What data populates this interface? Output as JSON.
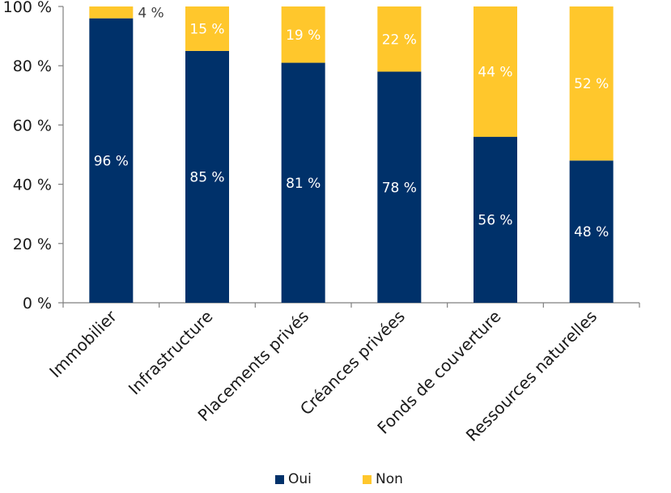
{
  "chart_data": {
    "type": "bar",
    "stacked": true,
    "categories": [
      "Immobilier",
      "Infrastructure",
      "Placements privés",
      "Créances privées",
      "Fonds de couverture",
      "Ressources naturelles"
    ],
    "series": [
      {
        "name": "Oui",
        "values": [
          96,
          85,
          81,
          78,
          56,
          48
        ],
        "labels": [
          "96 %",
          "85 %",
          "81 %",
          "78 %",
          "56 %",
          "48 %"
        ],
        "color": "#00316A"
      },
      {
        "name": "Non",
        "values": [
          4,
          15,
          19,
          22,
          44,
          52
        ],
        "labels": [
          "4 %",
          "15 %",
          "19 %",
          "22 %",
          "44 %",
          "52 %"
        ],
        "color": "#FFC72C"
      }
    ],
    "yticks": [
      0,
      20,
      40,
      60,
      80,
      100
    ],
    "ytick_labels": [
      "0 %",
      "20 %",
      "40 %",
      "60 %",
      "80 %",
      "100 %"
    ],
    "ylim": [
      0,
      100
    ],
    "grid": false,
    "legend": "bottom",
    "xlabel": "",
    "ylabel": "",
    "title": ""
  },
  "colors": {
    "axis": "#7f7f7f",
    "text": "#1a1a1a",
    "label_on_dark": "#ffffff",
    "label_on_light": "#ffffff",
    "label_outside": "#404040"
  }
}
